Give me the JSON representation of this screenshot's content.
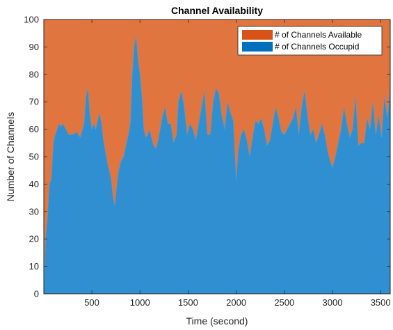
{
  "chart_data": {
    "type": "area",
    "stacked": true,
    "title": "Channel Availability",
    "xlabel": "Time (second)",
    "ylabel": "Number of Channels",
    "xlim": [
      1,
      3600
    ],
    "ylim": [
      0,
      100
    ],
    "xticks": [
      500,
      1000,
      1500,
      2000,
      2500,
      3000,
      3500
    ],
    "yticks": [
      0,
      10,
      20,
      30,
      40,
      50,
      60,
      70,
      80,
      90,
      100
    ],
    "grid": false,
    "legend_position": "top-right",
    "total_channels": 100,
    "series": [
      {
        "name": "# of Channels Available",
        "color": "#D95319",
        "area_color": "#E07540",
        "role": "top",
        "values_are": "100 - occupied"
      },
      {
        "name": "# of Channels Occupid",
        "color": "#0072BD",
        "area_color": "#2F8FD0",
        "role": "bottom"
      }
    ],
    "x": [
      1,
      20,
      40,
      60,
      80,
      100,
      120,
      140,
      160,
      180,
      200,
      230,
      260,
      300,
      340,
      380,
      420,
      440,
      460,
      480,
      500,
      520,
      540,
      560,
      580,
      600,
      620,
      640,
      660,
      680,
      700,
      720,
      740,
      760,
      780,
      800,
      830,
      860,
      880,
      900,
      920,
      940,
      960,
      980,
      1000,
      1020,
      1040,
      1060,
      1080,
      1100,
      1120,
      1140,
      1170,
      1200,
      1230,
      1260,
      1290,
      1320,
      1350,
      1380,
      1400,
      1430,
      1460,
      1490,
      1520,
      1550,
      1580,
      1610,
      1640,
      1670,
      1700,
      1730,
      1760,
      1790,
      1820,
      1850,
      1880,
      1910,
      1940,
      1970,
      2000,
      2020,
      2050,
      2080,
      2110,
      2140,
      2170,
      2200,
      2230,
      2260,
      2290,
      2320,
      2350,
      2380,
      2410,
      2440,
      2470,
      2500,
      2530,
      2560,
      2590,
      2620,
      2650,
      2680,
      2710,
      2740,
      2770,
      2800,
      2830,
      2860,
      2890,
      2920,
      2950,
      2980,
      3000,
      3030,
      3060,
      3090,
      3120,
      3150,
      3180,
      3210,
      3240,
      3270,
      3300,
      3330,
      3360,
      3390,
      3420,
      3450,
      3480,
      3510,
      3540,
      3570,
      3600
    ],
    "occupied": [
      2,
      20,
      28,
      40,
      42,
      55,
      58,
      60,
      62,
      61,
      62,
      60,
      58,
      58,
      59,
      57,
      62,
      72,
      75,
      65,
      60,
      62,
      60,
      63,
      66,
      62,
      56,
      52,
      48,
      45,
      42,
      35,
      32,
      40,
      45,
      48,
      50,
      55,
      58,
      62,
      80,
      90,
      94,
      85,
      80,
      72,
      60,
      57,
      58,
      60,
      57,
      54,
      53,
      58,
      64,
      68,
      62,
      62,
      55,
      58,
      70,
      74,
      68,
      58,
      62,
      60,
      56,
      62,
      68,
      74,
      58,
      58,
      70,
      75,
      73,
      65,
      60,
      70,
      66,
      63,
      41,
      52,
      58,
      60,
      56,
      50,
      57,
      63,
      62,
      64,
      60,
      54,
      56,
      62,
      68,
      64,
      59,
      58,
      60,
      62,
      64,
      68,
      58,
      68,
      74,
      65,
      58,
      60,
      55,
      58,
      62,
      58,
      52,
      48,
      46,
      50,
      55,
      60,
      68,
      62,
      57,
      60,
      72,
      54,
      55,
      55,
      64,
      60,
      70,
      58,
      65,
      57,
      72,
      64,
      75
    ]
  }
}
